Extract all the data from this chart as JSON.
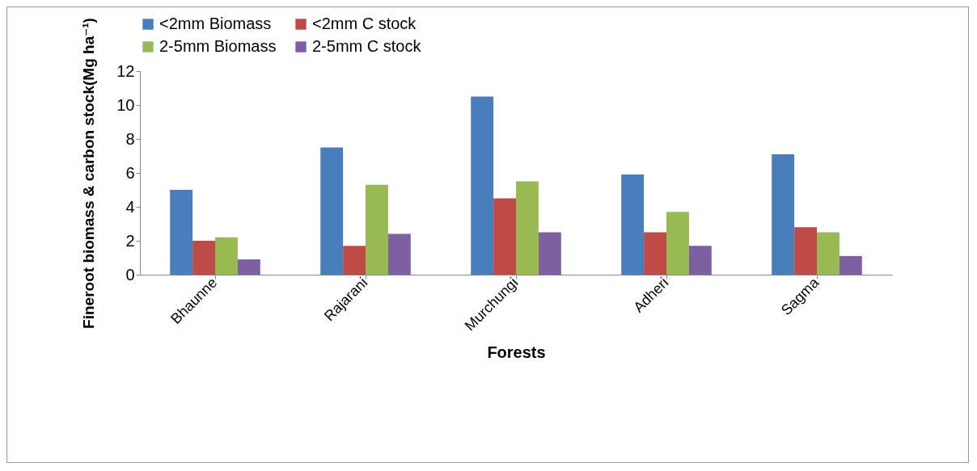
{
  "chart_data": {
    "type": "bar",
    "xlabel": "Forests",
    "ylabel": "Fineroot biomass & carbon stock(Mg ha⁻¹)",
    "categories": [
      "Bhaunne",
      "Rajarani",
      "Murchungi",
      "Adheri",
      "Sagma"
    ],
    "series": [
      {
        "name": "<2mm Biomass",
        "color": "#4a7ebb",
        "values": [
          5.0,
          7.5,
          10.5,
          5.9,
          7.1
        ]
      },
      {
        "name": "<2mm C stock",
        "color": "#be4b48",
        "values": [
          2.0,
          1.7,
          4.5,
          2.5,
          2.8
        ]
      },
      {
        "name": "2-5mm Biomass",
        "color": "#98b954",
        "values": [
          2.2,
          5.3,
          5.5,
          3.7,
          2.5
        ]
      },
      {
        "name": "2-5mm C stock",
        "color": "#7d60a0",
        "values": [
          0.9,
          2.4,
          2.5,
          1.7,
          1.1
        ]
      }
    ],
    "ylim": [
      0,
      12
    ],
    "yticks": [
      0,
      2,
      4,
      6,
      8,
      10,
      12
    ],
    "grid": false,
    "legend": "top"
  }
}
